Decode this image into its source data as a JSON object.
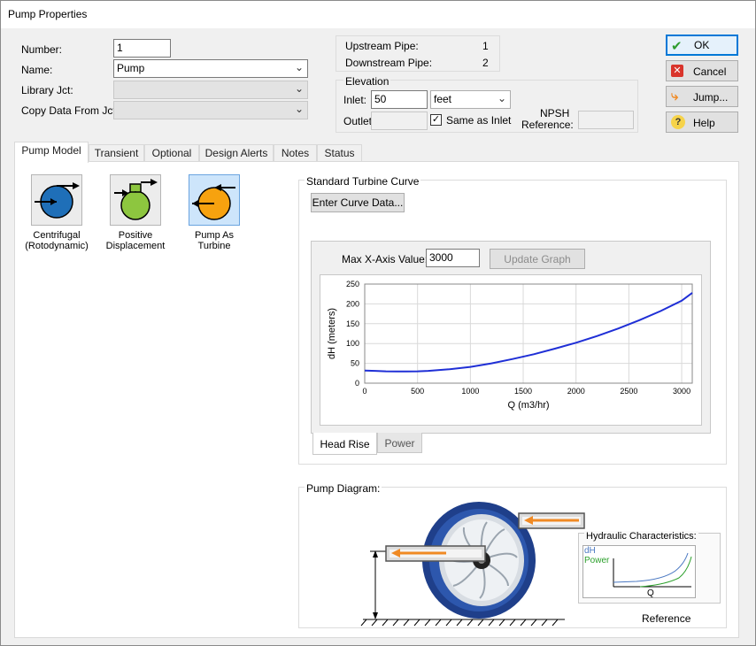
{
  "window": {
    "title": "Pump Properties"
  },
  "fields": {
    "number_label": "Number:",
    "number_value": "1",
    "name_label": "Name:",
    "name_value": "Pump",
    "library_label": "Library Jct:",
    "library_value": "",
    "copy_label": "Copy Data From Jct...",
    "copy_value": ""
  },
  "pipes": {
    "upstream_label": "Upstream Pipe:",
    "upstream_value": "1",
    "downstream_label": "Downstream Pipe:",
    "downstream_value": "2"
  },
  "elevation": {
    "title": "Elevation",
    "inlet_label": "Inlet:",
    "inlet_value": "50",
    "inlet_unit": "feet",
    "outlet_label": "Outlet:",
    "outlet_value": "",
    "same_as_inlet_label": "Same as Inlet",
    "same_as_inlet_checked": true,
    "npsh_label": "NPSH",
    "npsh_ref_label": "Reference:",
    "npsh_value": ""
  },
  "buttons": {
    "ok": "OK",
    "cancel": "Cancel",
    "jump": "Jump...",
    "help": "Help"
  },
  "tabs": [
    {
      "label": "Pump Model",
      "active": true
    },
    {
      "label": "Transient",
      "active": false
    },
    {
      "label": "Optional",
      "active": false
    },
    {
      "label": "Design Alerts",
      "active": false
    },
    {
      "label": "Notes",
      "active": false
    },
    {
      "label": "Status",
      "active": false
    }
  ],
  "pump_models": [
    {
      "line1": "Centrifugal",
      "line2": "(Rotodynamic)",
      "icon": "centrifugal-pump-icon",
      "color": "#1f6fb8",
      "selected": false
    },
    {
      "line1": "Positive",
      "line2": "Displacement",
      "icon": "positive-displacement-pump-icon",
      "color": "#8dc63f",
      "selected": false
    },
    {
      "line1": "Pump As",
      "line2": "Turbine",
      "icon": "pump-as-turbine-icon",
      "color": "#f7a20f",
      "selected": true
    }
  ],
  "curve": {
    "group_title": "Standard Turbine Curve",
    "enter_curve_button": "Enter Curve Data...",
    "max_x_label": "Max X-Axis Value:",
    "max_x_value": "3000",
    "update_graph_button": "Update Graph",
    "graph_tabs": [
      "Head Rise",
      "Power"
    ]
  },
  "chart_data": {
    "type": "line",
    "xlabel": "Q (m3/hr)",
    "ylabel": "dH (meters)",
    "xlim": [
      0,
      3100
    ],
    "ylim": [
      0,
      250
    ],
    "x_ticks": [
      0,
      500,
      1000,
      1500,
      2000,
      2500,
      3000
    ],
    "y_ticks": [
      0,
      50,
      100,
      150,
      200,
      250
    ],
    "grid": true,
    "line_color": "#1f2fd6",
    "series": [
      {
        "x": [
          0,
          100,
          200,
          300,
          400,
          500,
          600,
          800,
          1000,
          1200,
          1400,
          1600,
          1800,
          2000,
          2200,
          2400,
          2600,
          2800,
          3000,
          3100
        ],
        "values": [
          32,
          31,
          30,
          29.5,
          29.5,
          30,
          31,
          35,
          41,
          50,
          61,
          73,
          87,
          102,
          119,
          138,
          159,
          182,
          208,
          228
        ]
      }
    ]
  },
  "diagram": {
    "title": "Pump Diagram:",
    "hydraulic_title": "Hydraulic Characteristics:",
    "dh_label": "dH",
    "power_label": "Power",
    "q_label": "Q",
    "reference_label": "Reference",
    "dh_color": "#4a78c2",
    "power_color": "#2ca02c",
    "arrow_color": "#f08a24",
    "volute_color": "#1f3f8a"
  }
}
